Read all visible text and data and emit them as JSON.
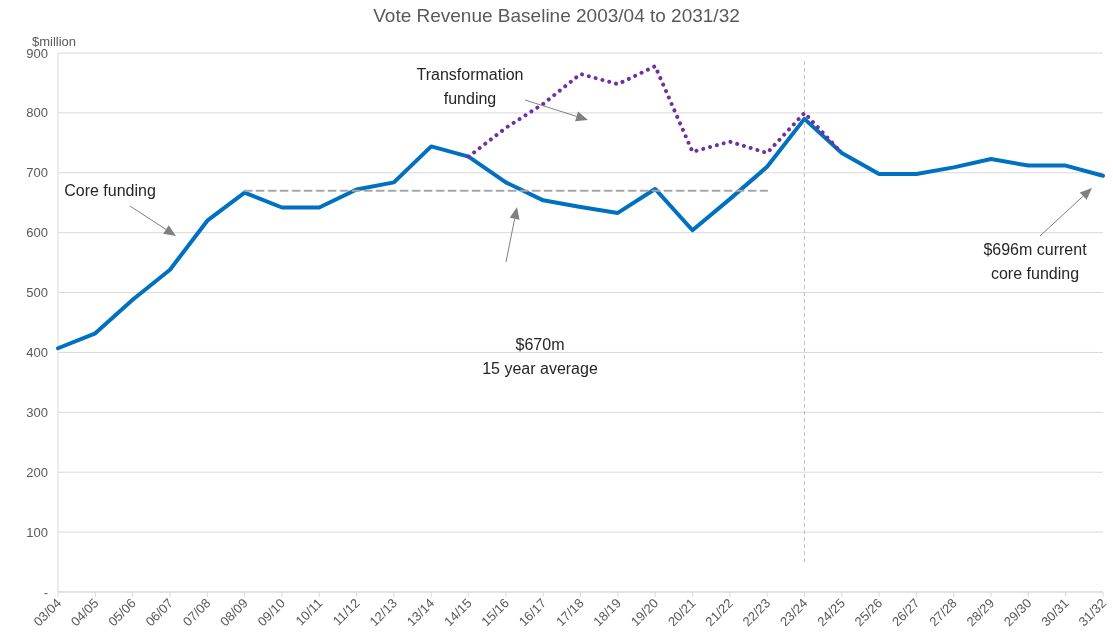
{
  "chart_data": {
    "type": "line",
    "title": "Vote Revenue Baseline 2003/04 to 2031/32",
    "ylabel": "$million",
    "categories": [
      "03/04",
      "04/05",
      "05/06",
      "06/07",
      "07/08",
      "08/09",
      "09/10",
      "10/11",
      "11/12",
      "12/13",
      "13/14",
      "14/15",
      "15/16",
      "16/17",
      "17/18",
      "18/19",
      "19/20",
      "20/21",
      "21/22",
      "22/23",
      "23/24",
      "24/25",
      "25/26",
      "26/27",
      "27/28",
      "28/29",
      "29/30",
      "30/31",
      "31/32"
    ],
    "series": [
      {
        "color": "#7030a0",
        "line_style": "dotted",
        "values": [
          null,
          null,
          null,
          null,
          null,
          null,
          null,
          null,
          null,
          null,
          null,
          727,
          775,
          815,
          865,
          848,
          878,
          735,
          752,
          733,
          800,
          733,
          null,
          null,
          null,
          null,
          null,
          null,
          null
        ]
      },
      {
        "color": "#a6a6a6",
        "line_style": "dashed",
        "values": [
          null,
          null,
          null,
          null,
          null,
          670,
          670,
          670,
          670,
          670,
          670,
          670,
          670,
          670,
          670,
          670,
          670,
          670,
          670,
          670,
          null,
          null,
          null,
          null,
          null,
          null,
          null,
          null,
          null
        ]
      },
      {
        "color": "#0070c0",
        "line_style": "solid",
        "values": [
          407,
          432,
          488,
          538,
          620,
          667,
          642,
          642,
          672,
          684,
          744,
          727,
          684,
          654,
          643,
          633,
          673,
          604,
          656,
          710,
          790,
          733,
          698,
          698,
          709,
          723,
          712,
          712,
          695
        ]
      }
    ],
    "ylim": [
      0,
      900
    ],
    "yticks": [
      {
        "value": 0,
        "label": "-"
      },
      100,
      200,
      300,
      400,
      500,
      600,
      700,
      800,
      900
    ],
    "grid": "y",
    "marker": "none",
    "ref_lines": [
      {
        "axis": "x",
        "value": "23/24",
        "color": "#bfbfbf",
        "line_style": "dashed"
      }
    ],
    "annotations": [
      "Core funding",
      "Transformation\nfunding",
      "$670m\n15 year average",
      "$696m current\ncore funding"
    ]
  }
}
